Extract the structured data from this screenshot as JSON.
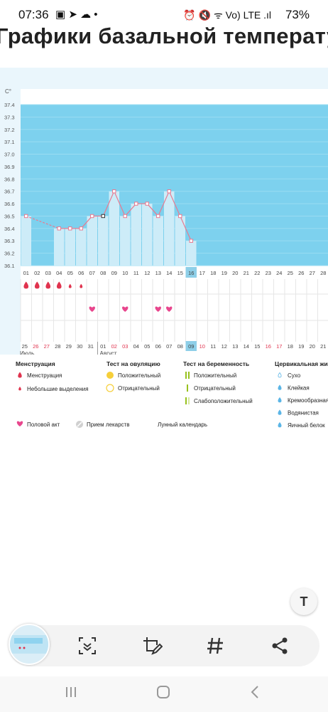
{
  "status_bar": {
    "time": "07:36",
    "left_icons": "▣ ➤ ☁ •",
    "right_icons": "⏰ 🔇 ᯤ Vo) LTE .ıl",
    "battery": "73%"
  },
  "page_title": "Графики базальной температу",
  "chart_data": {
    "type": "line",
    "ylabel": "C°",
    "ylim": [
      36.1,
      37.4
    ],
    "yticks": [
      "37.4",
      "37.3",
      "37.2",
      "37.1",
      "37.0",
      "36.9",
      "36.8",
      "36.7",
      "36.6",
      "36.5",
      "36.4",
      "36.3",
      "36.2",
      "36.1"
    ],
    "x_days": [
      "01",
      "02",
      "03",
      "04",
      "05",
      "06",
      "07",
      "08",
      "09",
      "10",
      "11",
      "12",
      "13",
      "14",
      "15",
      "16",
      "17",
      "18",
      "19",
      "20",
      "21",
      "22",
      "23",
      "24",
      "25",
      "26",
      "27",
      "28"
    ],
    "current_day_index": 15,
    "series": [
      {
        "values": [
          36.5,
          null,
          null,
          36.4,
          36.4,
          36.4,
          36.5,
          36.5,
          36.7,
          36.5,
          36.6,
          36.6,
          36.5,
          36.7,
          36.5,
          36.3
        ]
      }
    ],
    "dashed_segment": [
      0,
      3
    ],
    "highlight_point": 7,
    "bottom_row_dates": [
      "25",
      "26",
      "27",
      "28",
      "29",
      "30",
      "31",
      "01",
      "02",
      "03",
      "04",
      "05",
      "06",
      "07",
      "08",
      "09",
      "10",
      "11",
      "12",
      "13",
      "14",
      "15",
      "16",
      "17",
      "18",
      "19",
      "20",
      "21"
    ],
    "bottom_row_red": [
      "26",
      "27",
      "02",
      "03",
      "10",
      "16",
      "17"
    ],
    "month_labels": [
      "Июль",
      "Август"
    ],
    "menstruation_days": [
      0,
      1,
      2,
      3
    ],
    "light_bleeding_days": [
      4,
      5
    ],
    "intercourse_days": [
      6,
      9,
      12,
      13
    ],
    "moon_day": 25
  },
  "colors": {
    "bg": "#eaf6fc",
    "plot": "#7dd1ee",
    "bar": "#cdecf8",
    "line": "#e87a90",
    "drop": "#e0334e",
    "heart": "#e8468d",
    "yellow": "#f6cf3a",
    "green": "#98c21e",
    "cervix": "#5bb5e6",
    "moon": "#e8911d",
    "today": "#8ecfe8"
  },
  "legend": {
    "menstruation": {
      "title": "Менструация",
      "items": [
        "Менструация",
        "Небольшие выделения"
      ]
    },
    "ovulation": {
      "title": "Тест на овуляцию",
      "items": [
        "Положительный",
        "Отрицательный"
      ]
    },
    "pregnancy": {
      "title": "Тест на беременность",
      "items": [
        "Положительный",
        "Отрицательный",
        "Слабоположительный"
      ]
    },
    "cervical": {
      "title": "Цервикальная жи",
      "items": [
        "Сухо",
        "Клейкая",
        "Кремообразная",
        "Водянистая",
        "Яичный белок"
      ]
    },
    "other": [
      "Половой акт",
      "Прием лекарств",
      "Лунный календарь"
    ]
  },
  "icons": {
    "scan": "scan-icon",
    "crop_edit": "crop-edit-icon",
    "hashtag": "hashtag-icon",
    "share": "share-icon",
    "text_extract": "text-extract-icon"
  }
}
